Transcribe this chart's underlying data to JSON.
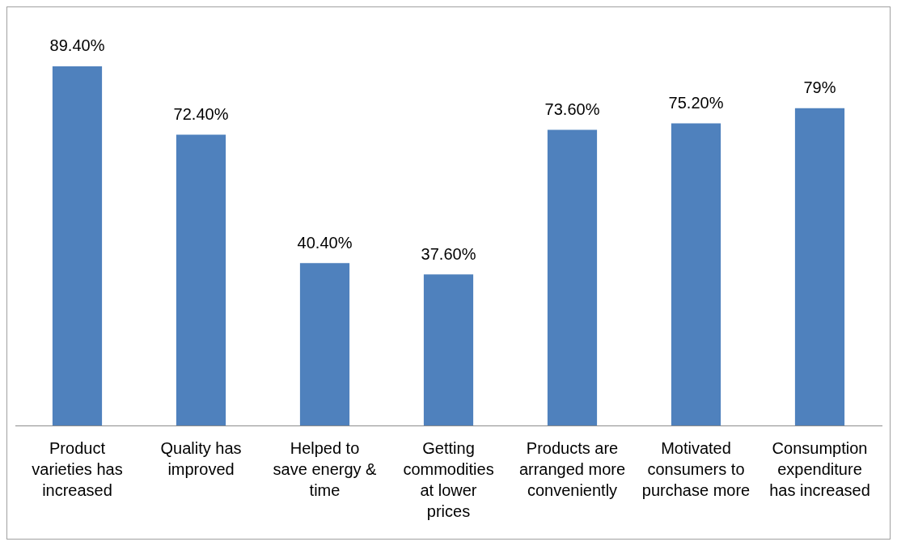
{
  "chart_data": {
    "type": "bar",
    "categories": [
      "Product varieties has increased",
      "Quality has improved",
      "Helped to save energy & time",
      "Getting commodities at lower prices",
      "Products are arranged more conveniently",
      "Motivated consumers to purchase more",
      "Consumption expenditure has increased"
    ],
    "values": [
      89.4,
      72.4,
      40.4,
      37.6,
      73.6,
      75.2,
      79
    ],
    "value_labels": [
      "89.40%",
      "72.40%",
      "40.40%",
      "37.60%",
      "73.60%",
      "75.20%",
      "79%"
    ],
    "color": "#4f81bd",
    "grid": false,
    "legend": false,
    "tick_labels": "x"
  }
}
